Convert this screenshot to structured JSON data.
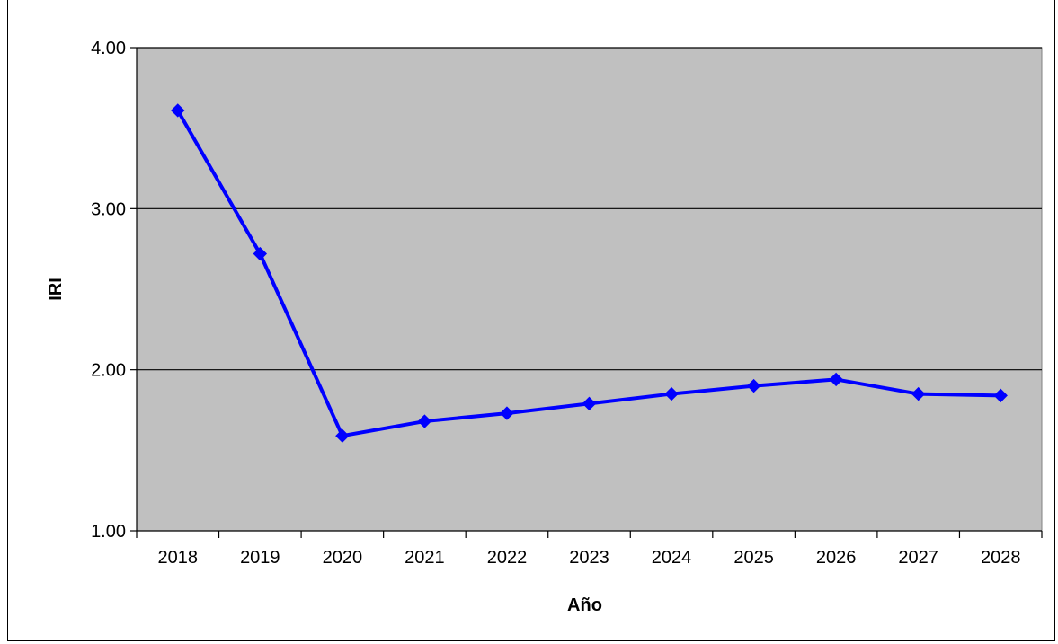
{
  "chart_data": {
    "type": "line",
    "title": "",
    "xlabel": "Año",
    "ylabel": "IRI",
    "categories": [
      "2018",
      "2019",
      "2020",
      "2021",
      "2022",
      "2023",
      "2024",
      "2025",
      "2026",
      "2027",
      "2028"
    ],
    "series": [
      {
        "values": [
          3.61,
          2.72,
          1.59,
          1.68,
          1.73,
          1.79,
          1.85,
          1.9,
          1.94,
          1.85,
          1.84
        ]
      }
    ],
    "ylim": [
      1.0,
      4.0
    ],
    "yticks": [
      "1.00",
      "2.00",
      "3.00",
      "4.00"
    ],
    "grid": "horizontal major lines",
    "legend": "none",
    "colors": {
      "line": "#0000FF",
      "plot_background": "#C0C0C0"
    }
  }
}
